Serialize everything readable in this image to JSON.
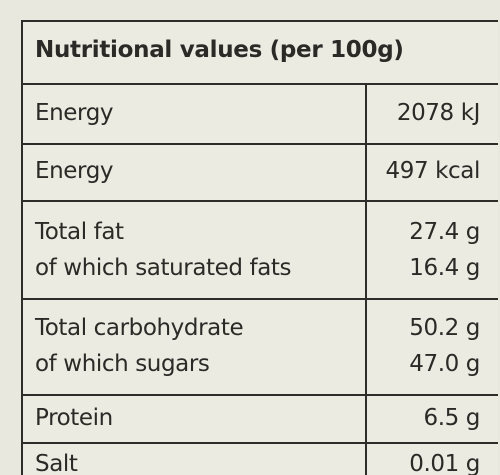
{
  "title": "Nutritional values (per 100g)",
  "rows": [
    {
      "name": "Energy",
      "value": "2078 kJ"
    },
    {
      "name": "Energy",
      "value": "497 kcal"
    },
    {
      "name": "Total fat",
      "value": "27.4 g",
      "sub_name": "of which saturated fats",
      "sub_value": "16.4 g"
    },
    {
      "name": "Total carbohydrate",
      "value": "50.2 g",
      "sub_name": "of which sugars",
      "sub_value": "47.0 g"
    },
    {
      "name": "Protein",
      "value": "6.5 g"
    },
    {
      "name": "Salt",
      "value": "0.01 g"
    }
  ]
}
